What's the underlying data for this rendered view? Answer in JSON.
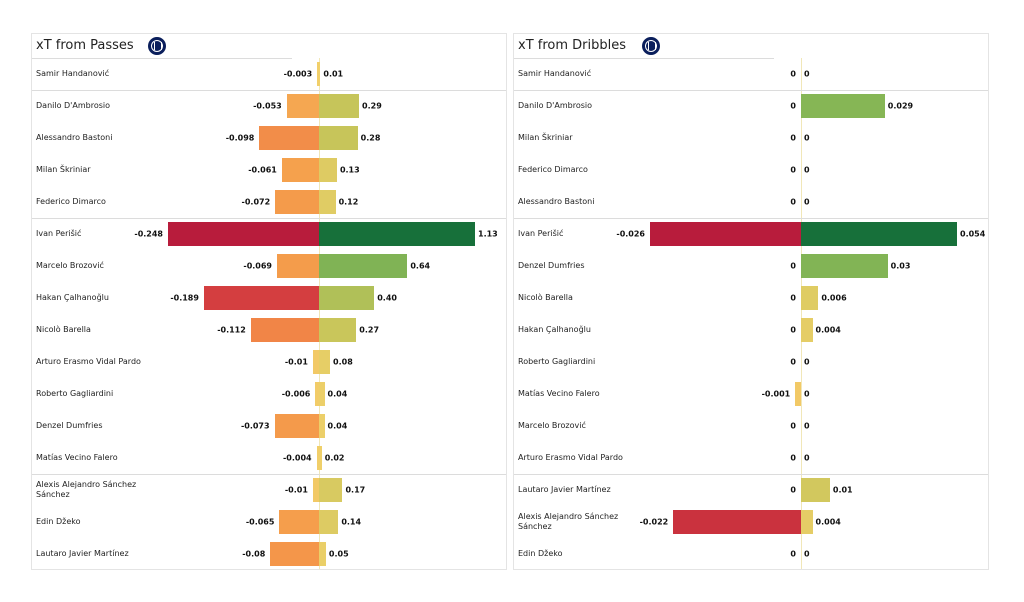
{
  "colors": {
    "neg_stops": [
      "#f2d16b",
      "#f5a04c",
      "#f07f46",
      "#d54040",
      "#b81c3c"
    ],
    "pos_stops": [
      "#f2d16b",
      "#c7c55a",
      "#8fba55",
      "#55a154",
      "#17703a"
    ]
  },
  "chart_data": [
    {
      "type": "bar",
      "title": "xT from Passes",
      "logo": "inter-milan-crest",
      "groups_after": [
        0,
        4,
        12
      ],
      "rows": [
        {
          "name": "Samir Handanović",
          "neg": "-0.003",
          "pos": "0.01"
        },
        {
          "name": "Danilo D'Ambrosio",
          "neg": "-0.053",
          "pos": "0.29"
        },
        {
          "name": "Alessandro Bastoni",
          "neg": "-0.098",
          "pos": "0.28"
        },
        {
          "name": "Milan Škriniar",
          "neg": "-0.061",
          "pos": "0.13"
        },
        {
          "name": "Federico Dimarco",
          "neg": "-0.072",
          "pos": "0.12"
        },
        {
          "name": "Ivan Perišić",
          "neg": "-0.248",
          "pos": "1.13"
        },
        {
          "name": "Marcelo Brozović",
          "neg": "-0.069",
          "pos": "0.64"
        },
        {
          "name": "Hakan Çalhanoğlu",
          "neg": "-0.189",
          "pos": "0.40"
        },
        {
          "name": "Nicolò Barella",
          "neg": "-0.112",
          "pos": "0.27"
        },
        {
          "name": "Arturo Erasmo Vidal Pardo",
          "neg": "-0.01",
          "pos": "0.08"
        },
        {
          "name": "Roberto Gagliardini",
          "neg": "-0.006",
          "pos": "0.04"
        },
        {
          "name": "Denzel Dumfries",
          "neg": "-0.073",
          "pos": "0.04"
        },
        {
          "name": "Matías Vecino Falero",
          "neg": "-0.004",
          "pos": "0.02"
        },
        {
          "name": "Alexis Alejandro Sánchez Sánchez",
          "neg": "-0.01",
          "pos": "0.17"
        },
        {
          "name": "Edin Džeko",
          "neg": "-0.065",
          "pos": "0.14"
        },
        {
          "name": "Lautaro Javier Martínez",
          "neg": "-0.08",
          "pos": "0.05"
        }
      ]
    },
    {
      "type": "bar",
      "title": "xT from Dribbles",
      "logo": "inter-milan-crest",
      "groups_after": [
        0,
        4,
        12
      ],
      "rows": [
        {
          "name": "Samir Handanović",
          "neg": "0",
          "pos": "0"
        },
        {
          "name": "Danilo D'Ambrosio",
          "neg": "0",
          "pos": "0.029"
        },
        {
          "name": "Milan Škriniar",
          "neg": "0",
          "pos": "0"
        },
        {
          "name": "Federico Dimarco",
          "neg": "0",
          "pos": "0"
        },
        {
          "name": "Alessandro Bastoni",
          "neg": "0",
          "pos": "0"
        },
        {
          "name": "Ivan Perišić",
          "neg": "-0.026",
          "pos": "0.054"
        },
        {
          "name": "Denzel Dumfries",
          "neg": "0",
          "pos": "0.03"
        },
        {
          "name": "Nicolò Barella",
          "neg": "0",
          "pos": "0.006"
        },
        {
          "name": "Hakan Çalhanoğlu",
          "neg": "0",
          "pos": "0.004"
        },
        {
          "name": "Roberto Gagliardini",
          "neg": "0",
          "pos": "0"
        },
        {
          "name": "Matías Vecino Falero",
          "neg": "-0.001",
          "pos": "0"
        },
        {
          "name": "Marcelo Brozović",
          "neg": "0",
          "pos": "0"
        },
        {
          "name": "Arturo Erasmo Vidal Pardo",
          "neg": "0",
          "pos": "0"
        },
        {
          "name": "Lautaro Javier Martínez",
          "neg": "0",
          "pos": "0.01"
        },
        {
          "name": "Alexis Alejandro Sánchez Sánchez",
          "neg": "-0.022",
          "pos": "0.004"
        },
        {
          "name": "Edin Džeko",
          "neg": "0",
          "pos": "0"
        }
      ]
    }
  ]
}
